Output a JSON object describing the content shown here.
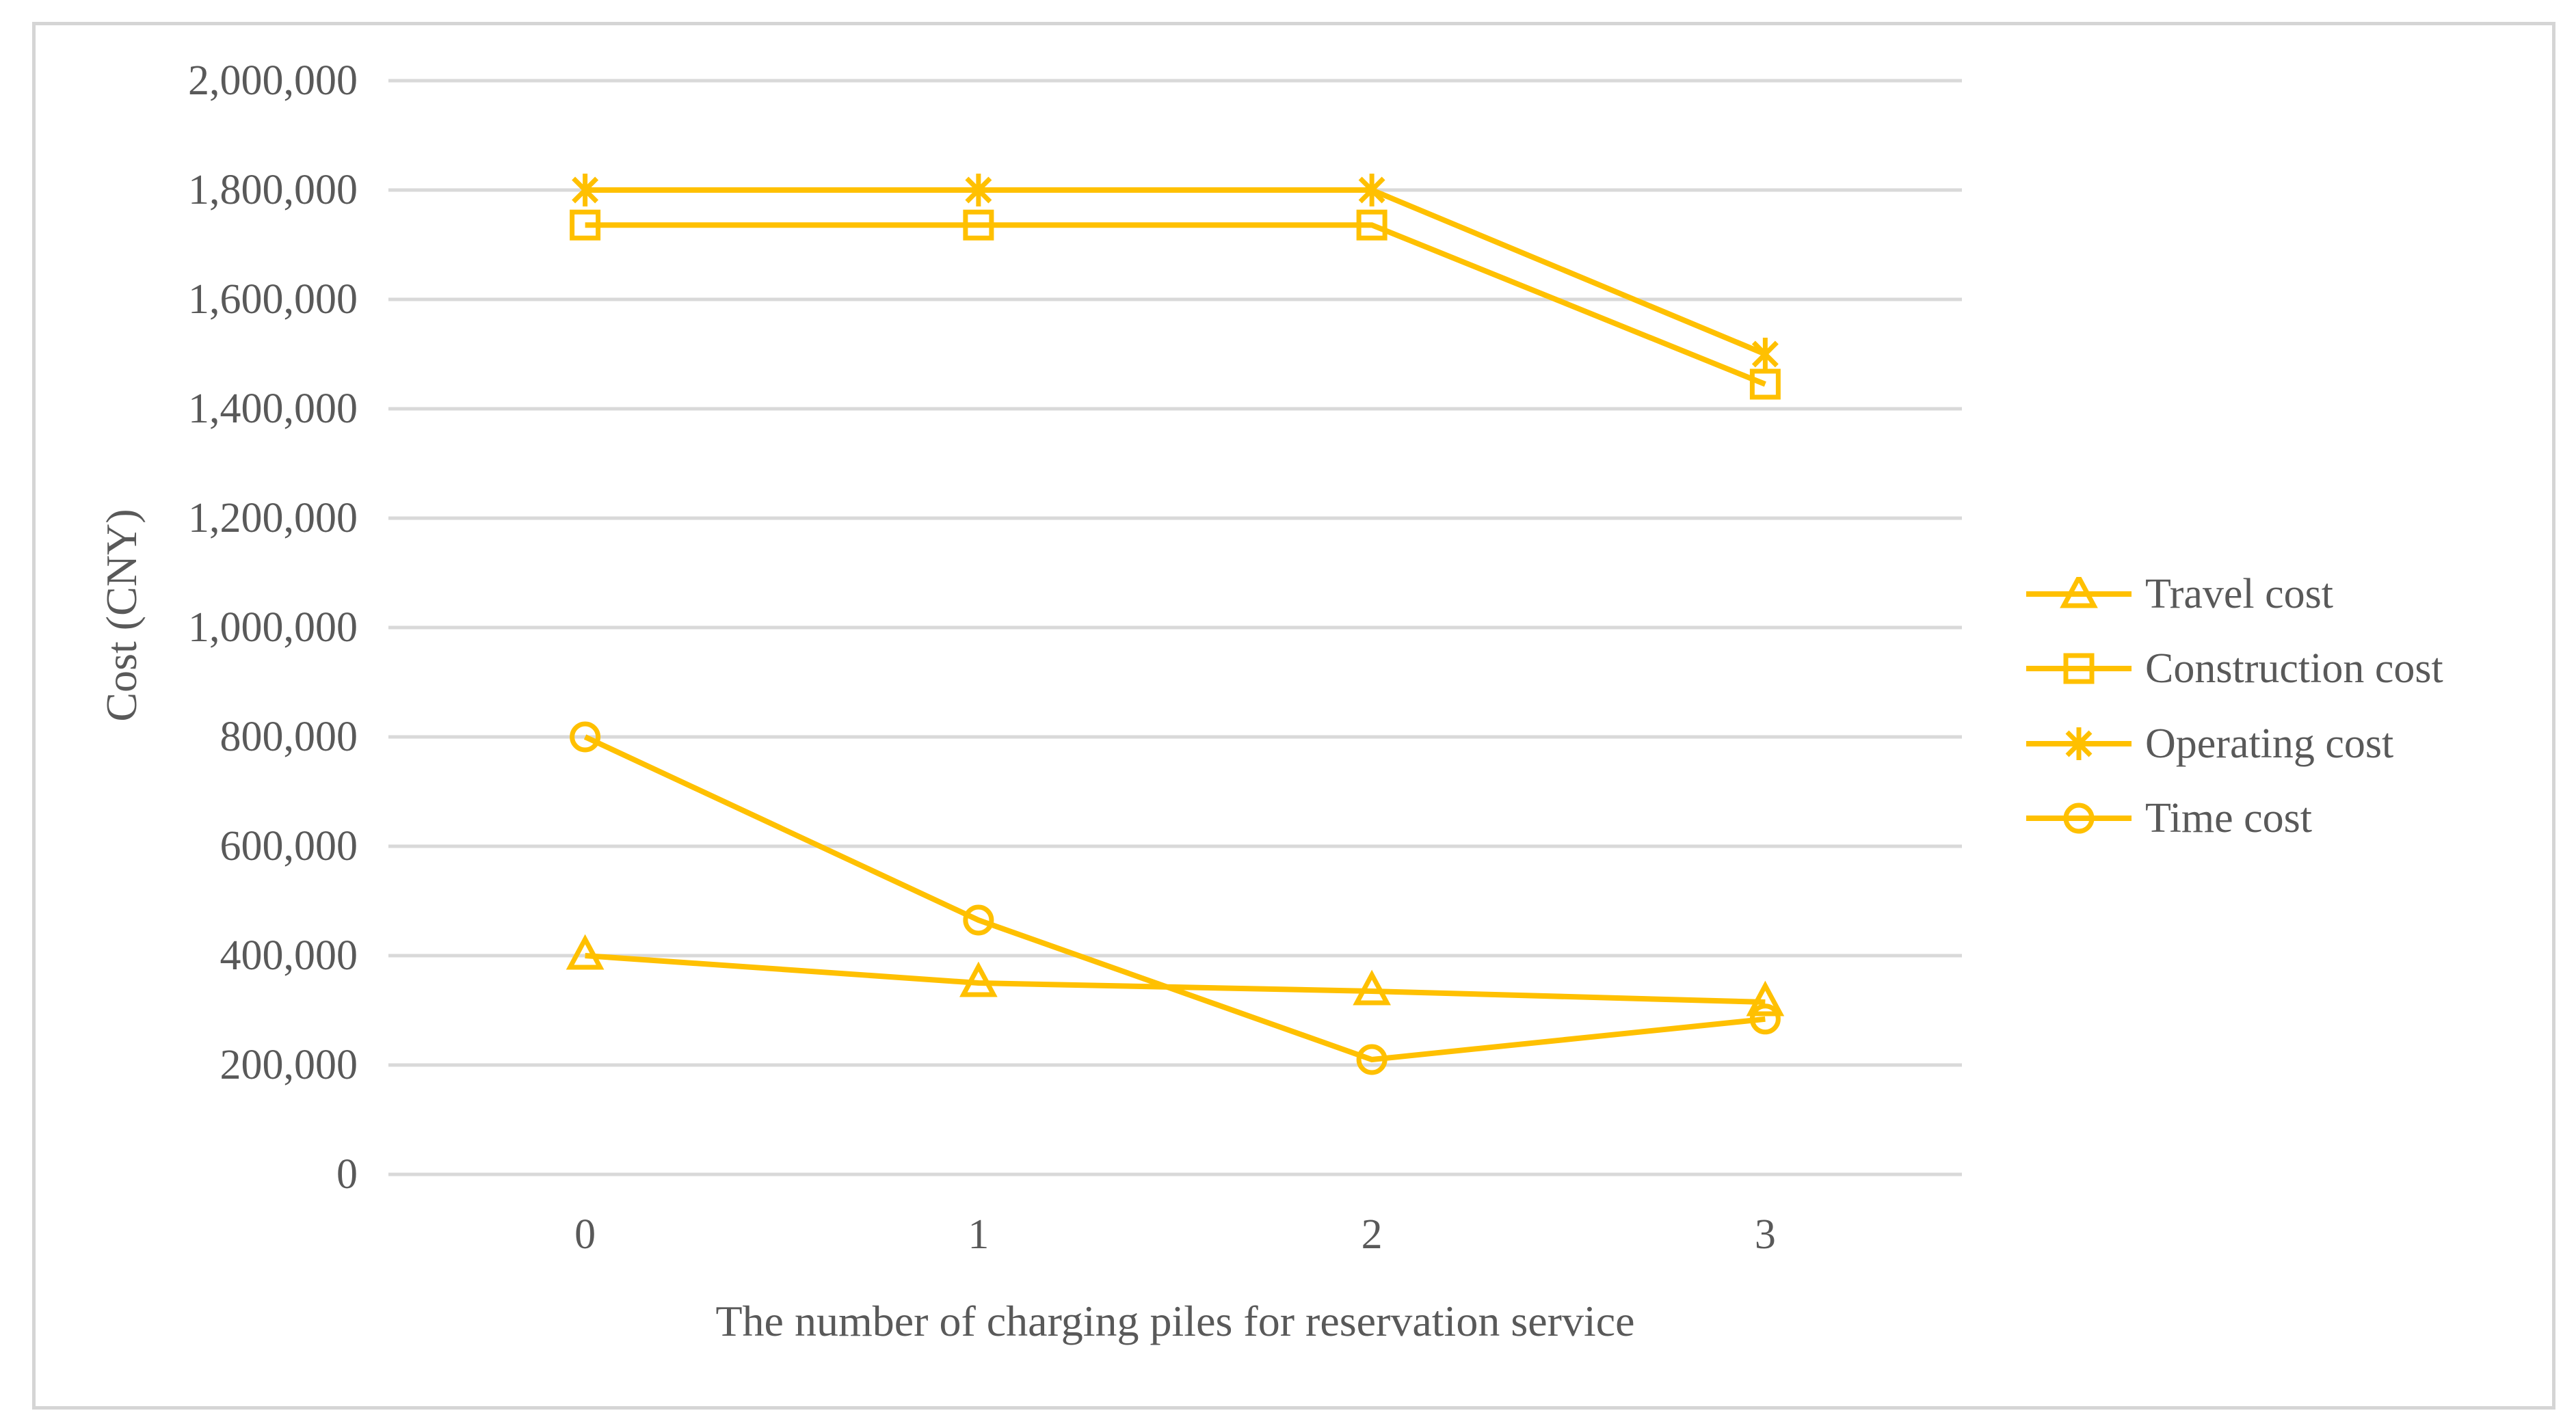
{
  "figure": {
    "background_color": "#ffffff",
    "border_color": "#d5d5d5"
  },
  "chart_data": {
    "type": "line",
    "title": "",
    "xlabel": "The number of charging piles for reservation service",
    "ylabel": "Cost (CNY)",
    "categories": [
      "0",
      "1",
      "2",
      "3"
    ],
    "ylim": [
      0,
      2000000
    ],
    "grid": "horizontal",
    "gridline_color": "#d9d9d9",
    "text_color": "#595959",
    "series_color": "#FFC000",
    "legend_position": "right",
    "yticks": [
      {
        "v": 0,
        "label": "0"
      },
      {
        "v": 200000,
        "label": "200,000"
      },
      {
        "v": 400000,
        "label": "400,000"
      },
      {
        "v": 600000,
        "label": "600,000"
      },
      {
        "v": 800000,
        "label": "800,000"
      },
      {
        "v": 1000000,
        "label": "1,000,000"
      },
      {
        "v": 1200000,
        "label": "1,200,000"
      },
      {
        "v": 1400000,
        "label": "1,400,000"
      },
      {
        "v": 1600000,
        "label": "1,600,000"
      },
      {
        "v": 1800000,
        "label": "1,800,000"
      },
      {
        "v": 2000000,
        "label": "2,000,000"
      }
    ],
    "series": [
      {
        "name": "Travel cost",
        "marker": "triangle",
        "values": [
          400000,
          350000,
          335000,
          315000
        ]
      },
      {
        "name": "Construction cost",
        "marker": "square",
        "values": [
          1736000,
          1736000,
          1736000,
          1445000
        ]
      },
      {
        "name": "Operating cost",
        "marker": "asterisk",
        "values": [
          1800000,
          1800000,
          1800000,
          1500000
        ]
      },
      {
        "name": "Time cost",
        "marker": "circle",
        "values": [
          800000,
          465000,
          210000,
          284000
        ]
      }
    ]
  }
}
